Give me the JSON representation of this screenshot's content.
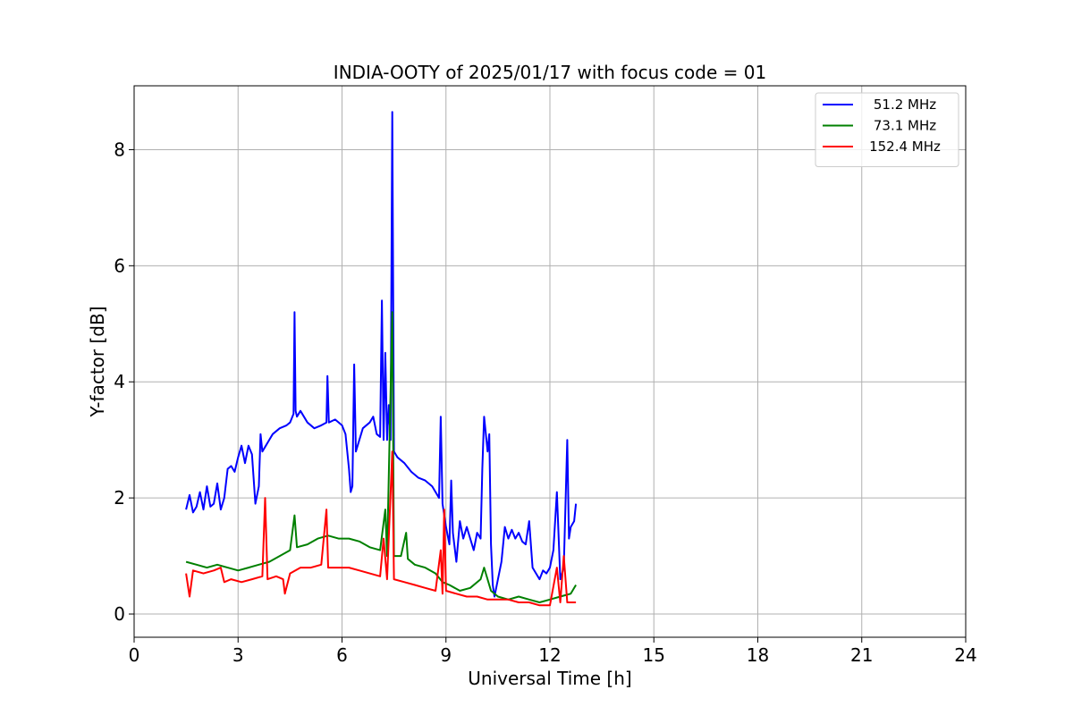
{
  "chart_data": {
    "type": "line",
    "title": "INDIA-OOTY of 2025/01/17 with focus code = 01",
    "xlabel": "Universal Time [h]",
    "ylabel": "Y-factor [dB]",
    "xlim": [
      0,
      24
    ],
    "ylim": [
      -0.4,
      9.1
    ],
    "xticks": [
      0,
      3,
      6,
      9,
      12,
      15,
      18,
      21,
      24
    ],
    "yticks": [
      0,
      2,
      4,
      6,
      8
    ],
    "grid": true,
    "legend_position": "top-right",
    "series": [
      {
        "name": "51.2 MHz",
        "color": "#0000ff",
        "points": [
          [
            1.5,
            1.8
          ],
          [
            1.6,
            2.05
          ],
          [
            1.7,
            1.75
          ],
          [
            1.8,
            1.85
          ],
          [
            1.9,
            2.1
          ],
          [
            2.0,
            1.8
          ],
          [
            2.1,
            2.2
          ],
          [
            2.2,
            1.85
          ],
          [
            2.3,
            1.9
          ],
          [
            2.4,
            2.25
          ],
          [
            2.5,
            1.8
          ],
          [
            2.6,
            2.0
          ],
          [
            2.7,
            2.5
          ],
          [
            2.8,
            2.55
          ],
          [
            2.9,
            2.45
          ],
          [
            3.0,
            2.7
          ],
          [
            3.1,
            2.9
          ],
          [
            3.2,
            2.6
          ],
          [
            3.3,
            2.9
          ],
          [
            3.4,
            2.75
          ],
          [
            3.5,
            1.9
          ],
          [
            3.6,
            2.2
          ],
          [
            3.65,
            3.1
          ],
          [
            3.7,
            2.8
          ],
          [
            3.8,
            2.9
          ],
          [
            3.9,
            3.0
          ],
          [
            4.0,
            3.1
          ],
          [
            4.2,
            3.2
          ],
          [
            4.4,
            3.25
          ],
          [
            4.5,
            3.3
          ],
          [
            4.6,
            3.45
          ],
          [
            4.63,
            5.2
          ],
          [
            4.66,
            3.5
          ],
          [
            4.7,
            3.4
          ],
          [
            4.8,
            3.5
          ],
          [
            4.9,
            3.4
          ],
          [
            5.0,
            3.3
          ],
          [
            5.2,
            3.2
          ],
          [
            5.4,
            3.25
          ],
          [
            5.55,
            3.3
          ],
          [
            5.58,
            4.1
          ],
          [
            5.62,
            3.3
          ],
          [
            5.8,
            3.35
          ],
          [
            6.0,
            3.25
          ],
          [
            6.1,
            3.1
          ],
          [
            6.2,
            2.5
          ],
          [
            6.25,
            2.1
          ],
          [
            6.3,
            2.2
          ],
          [
            6.35,
            4.3
          ],
          [
            6.4,
            2.8
          ],
          [
            6.5,
            3.0
          ],
          [
            6.6,
            3.2
          ],
          [
            6.8,
            3.3
          ],
          [
            6.9,
            3.4
          ],
          [
            7.0,
            3.1
          ],
          [
            7.1,
            3.05
          ],
          [
            7.15,
            5.4
          ],
          [
            7.2,
            3.0
          ],
          [
            7.25,
            4.5
          ],
          [
            7.3,
            3.0
          ],
          [
            7.35,
            3.6
          ],
          [
            7.4,
            3.0
          ],
          [
            7.45,
            8.65
          ],
          [
            7.5,
            2.8
          ],
          [
            7.6,
            2.7
          ],
          [
            7.8,
            2.6
          ],
          [
            8.0,
            2.45
          ],
          [
            8.2,
            2.35
          ],
          [
            8.4,
            2.3
          ],
          [
            8.6,
            2.2
          ],
          [
            8.8,
            2.0
          ],
          [
            8.85,
            3.4
          ],
          [
            8.9,
            1.9
          ],
          [
            9.0,
            1.5
          ],
          [
            9.1,
            1.2
          ],
          [
            9.15,
            2.3
          ],
          [
            9.2,
            1.4
          ],
          [
            9.3,
            0.9
          ],
          [
            9.4,
            1.6
          ],
          [
            9.5,
            1.3
          ],
          [
            9.6,
            1.5
          ],
          [
            9.7,
            1.3
          ],
          [
            9.8,
            1.1
          ],
          [
            9.9,
            1.4
          ],
          [
            10.0,
            1.3
          ],
          [
            10.05,
            2.5
          ],
          [
            10.1,
            3.4
          ],
          [
            10.2,
            2.8
          ],
          [
            10.25,
            3.1
          ],
          [
            10.3,
            1.2
          ],
          [
            10.35,
            0.5
          ],
          [
            10.4,
            0.3
          ],
          [
            10.5,
            0.6
          ],
          [
            10.6,
            0.9
          ],
          [
            10.7,
            1.5
          ],
          [
            10.8,
            1.3
          ],
          [
            10.9,
            1.45
          ],
          [
            11.0,
            1.3
          ],
          [
            11.1,
            1.4
          ],
          [
            11.2,
            1.25
          ],
          [
            11.3,
            1.2
          ],
          [
            11.4,
            1.6
          ],
          [
            11.5,
            0.8
          ],
          [
            11.6,
            0.7
          ],
          [
            11.7,
            0.6
          ],
          [
            11.8,
            0.75
          ],
          [
            11.9,
            0.7
          ],
          [
            12.0,
            0.8
          ],
          [
            12.1,
            1.1
          ],
          [
            12.2,
            2.1
          ],
          [
            12.3,
            0.6
          ],
          [
            12.4,
            0.8
          ],
          [
            12.5,
            3.0
          ],
          [
            12.55,
            1.3
          ],
          [
            12.6,
            1.5
          ],
          [
            12.7,
            1.6
          ],
          [
            12.75,
            1.9
          ]
        ]
      },
      {
        "name": "73.1 MHz",
        "color": "#008000",
        "points": [
          [
            1.5,
            0.9
          ],
          [
            1.8,
            0.85
          ],
          [
            2.1,
            0.8
          ],
          [
            2.4,
            0.85
          ],
          [
            2.7,
            0.8
          ],
          [
            3.0,
            0.75
          ],
          [
            3.3,
            0.8
          ],
          [
            3.6,
            0.85
          ],
          [
            3.9,
            0.9
          ],
          [
            4.2,
            1.0
          ],
          [
            4.5,
            1.1
          ],
          [
            4.63,
            1.7
          ],
          [
            4.7,
            1.15
          ],
          [
            5.0,
            1.2
          ],
          [
            5.3,
            1.3
          ],
          [
            5.6,
            1.35
          ],
          [
            5.9,
            1.3
          ],
          [
            6.2,
            1.3
          ],
          [
            6.5,
            1.25
          ],
          [
            6.8,
            1.15
          ],
          [
            7.1,
            1.1
          ],
          [
            7.25,
            1.8
          ],
          [
            7.3,
            1.0
          ],
          [
            7.45,
            5.2
          ],
          [
            7.5,
            1.0
          ],
          [
            7.7,
            1.0
          ],
          [
            7.85,
            1.4
          ],
          [
            7.9,
            0.95
          ],
          [
            8.1,
            0.85
          ],
          [
            8.4,
            0.8
          ],
          [
            8.7,
            0.7
          ],
          [
            8.9,
            0.55
          ],
          [
            9.1,
            0.5
          ],
          [
            9.4,
            0.4
          ],
          [
            9.7,
            0.45
          ],
          [
            10.0,
            0.6
          ],
          [
            10.1,
            0.8
          ],
          [
            10.3,
            0.4
          ],
          [
            10.5,
            0.3
          ],
          [
            10.8,
            0.25
          ],
          [
            11.1,
            0.3
          ],
          [
            11.4,
            0.25
          ],
          [
            11.7,
            0.2
          ],
          [
            12.0,
            0.25
          ],
          [
            12.3,
            0.3
          ],
          [
            12.6,
            0.35
          ],
          [
            12.75,
            0.5
          ]
        ]
      },
      {
        "name": "152.4 MHz",
        "color": "#ff0000",
        "points": [
          [
            1.5,
            0.7
          ],
          [
            1.6,
            0.3
          ],
          [
            1.7,
            0.75
          ],
          [
            2.0,
            0.7
          ],
          [
            2.3,
            0.75
          ],
          [
            2.5,
            0.8
          ],
          [
            2.6,
            0.55
          ],
          [
            2.8,
            0.6
          ],
          [
            3.1,
            0.55
          ],
          [
            3.4,
            0.6
          ],
          [
            3.7,
            0.65
          ],
          [
            3.78,
            2.0
          ],
          [
            3.85,
            0.6
          ],
          [
            4.1,
            0.65
          ],
          [
            4.3,
            0.6
          ],
          [
            4.35,
            0.35
          ],
          [
            4.5,
            0.7
          ],
          [
            4.8,
            0.8
          ],
          [
            5.1,
            0.8
          ],
          [
            5.4,
            0.85
          ],
          [
            5.55,
            1.8
          ],
          [
            5.6,
            0.8
          ],
          [
            5.9,
            0.8
          ],
          [
            6.2,
            0.8
          ],
          [
            6.5,
            0.75
          ],
          [
            6.8,
            0.7
          ],
          [
            7.1,
            0.65
          ],
          [
            7.2,
            1.3
          ],
          [
            7.3,
            0.6
          ],
          [
            7.45,
            2.8
          ],
          [
            7.5,
            0.6
          ],
          [
            7.8,
            0.55
          ],
          [
            8.1,
            0.5
          ],
          [
            8.4,
            0.45
          ],
          [
            8.7,
            0.4
          ],
          [
            8.85,
            1.1
          ],
          [
            8.9,
            0.35
          ],
          [
            8.95,
            1.8
          ],
          [
            9.0,
            0.4
          ],
          [
            9.3,
            0.35
          ],
          [
            9.6,
            0.3
          ],
          [
            9.9,
            0.3
          ],
          [
            10.2,
            0.25
          ],
          [
            10.5,
            0.25
          ],
          [
            10.8,
            0.25
          ],
          [
            11.1,
            0.2
          ],
          [
            11.4,
            0.2
          ],
          [
            11.7,
            0.15
          ],
          [
            12.0,
            0.15
          ],
          [
            12.2,
            0.8
          ],
          [
            12.3,
            0.2
          ],
          [
            12.4,
            1.0
          ],
          [
            12.5,
            0.2
          ],
          [
            12.75,
            0.2
          ]
        ]
      }
    ]
  }
}
